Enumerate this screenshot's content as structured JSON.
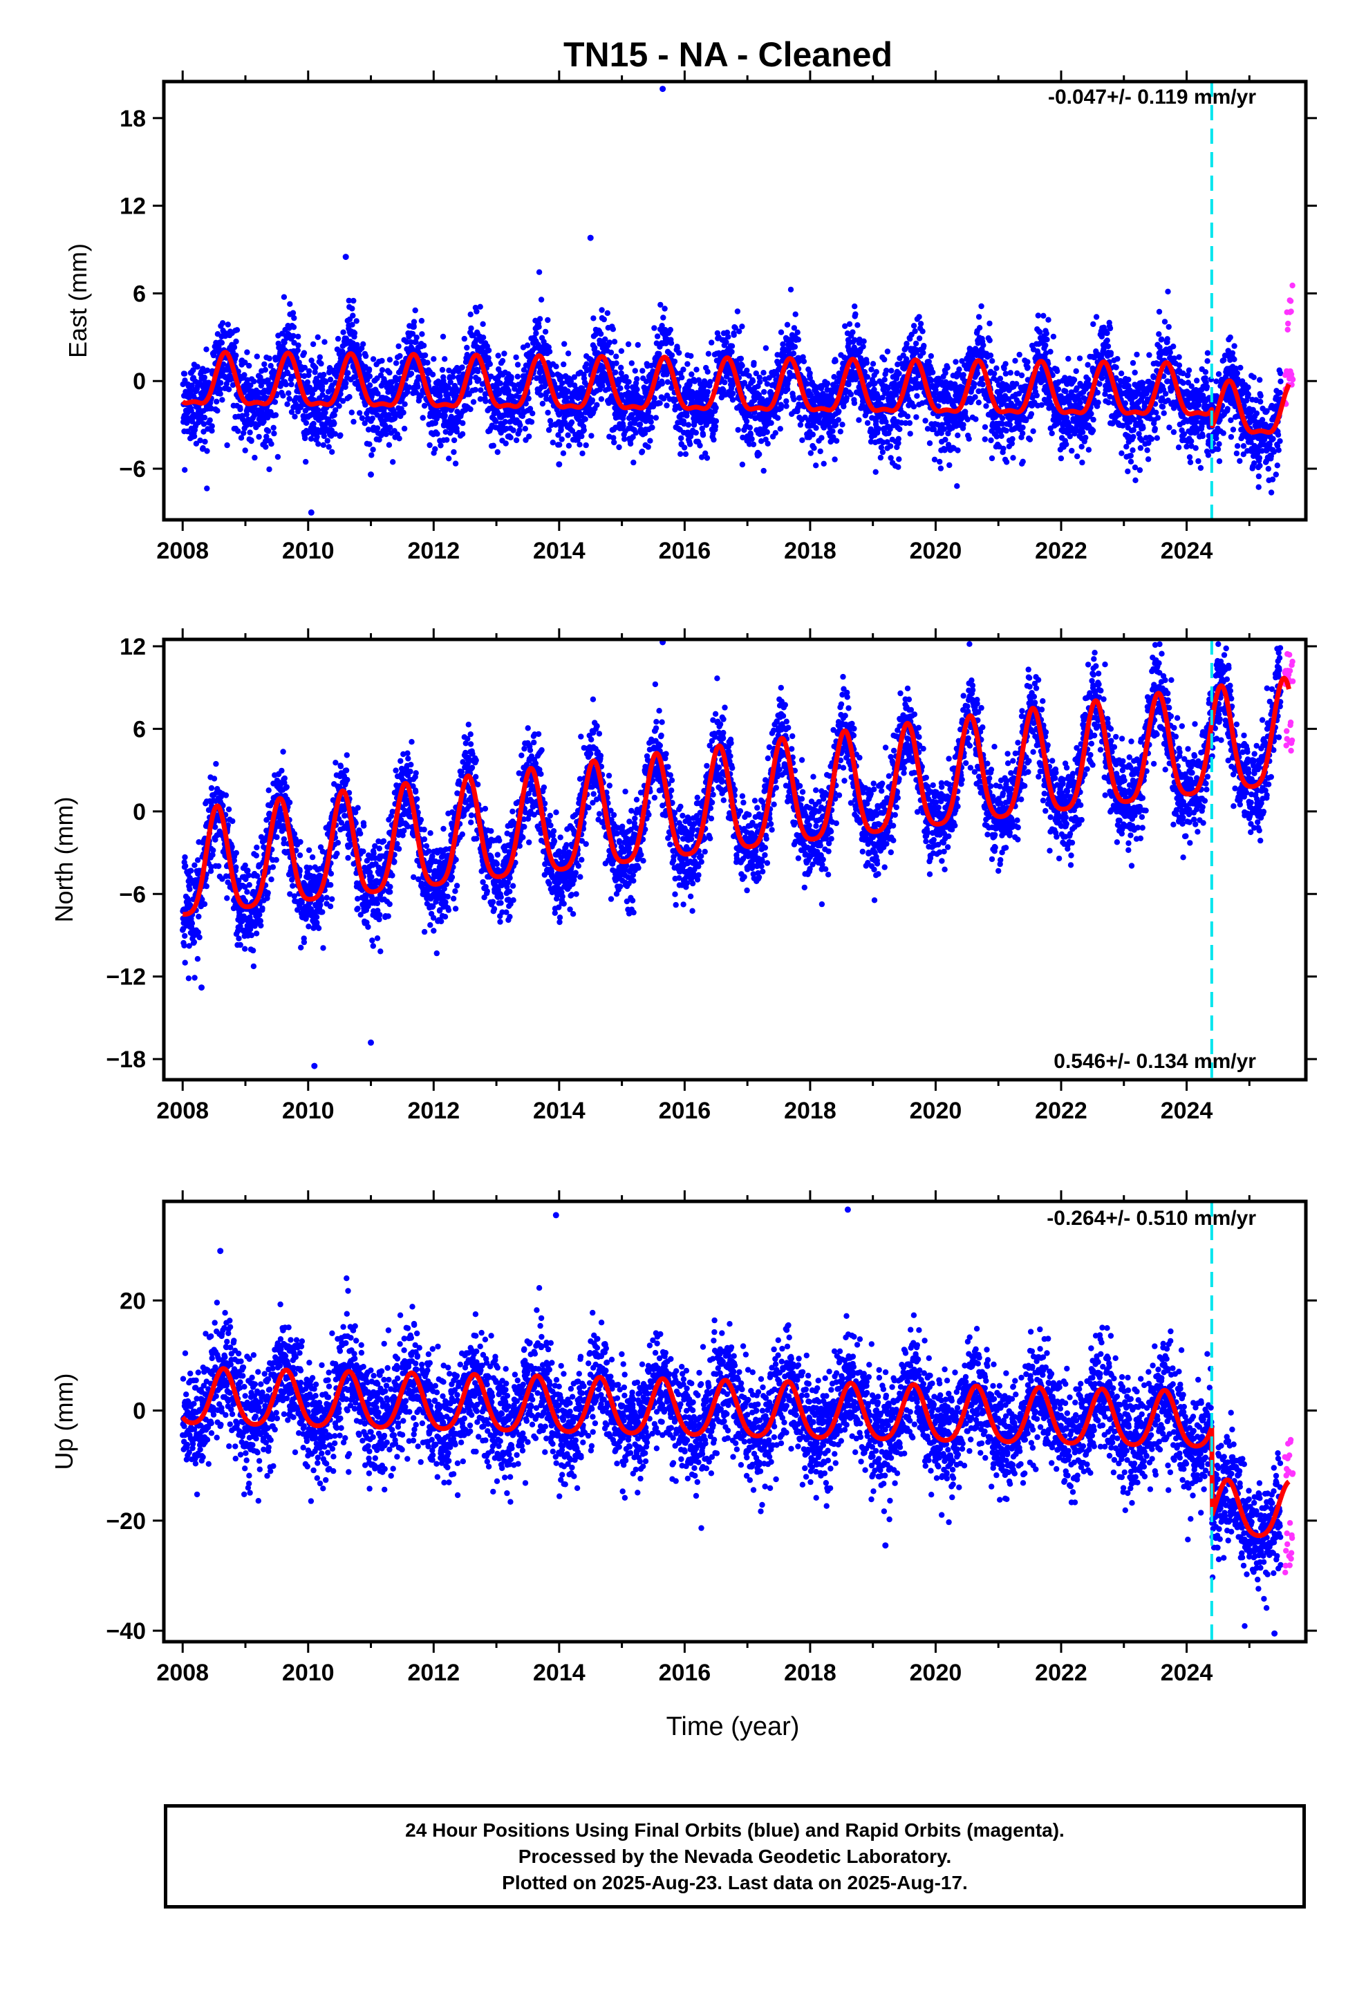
{
  "title": "TN15  - NA - Cleaned",
  "xlabel": "Time (year)",
  "colors": {
    "final": "#0000ff",
    "rapid": "#ff33ff",
    "model": "#ff0000",
    "event": "#00e5ee"
  },
  "footer": {
    "line1": "24 Hour Positions Using Final Orbits (blue) and Rapid Orbits (magenta).",
    "line2": "Processed by the Nevada Geodetic Laboratory.",
    "line3": "Plotted on 2025-Aug-23. Last data on 2025-Aug-17."
  },
  "chart_data": [
    {
      "type": "scatter",
      "component": "East",
      "ylabel": "East (mm)",
      "rate_label": "-0.047+/- 0.119 mm/yr",
      "xlim": [
        2007.7,
        2025.9
      ],
      "ylim": [
        -9.5,
        20.5
      ],
      "xticks": [
        2008,
        2010,
        2012,
        2014,
        2016,
        2018,
        2020,
        2022,
        2024
      ],
      "yticks": [
        -6,
        0,
        6,
        12,
        18
      ],
      "event_year": 2024.4,
      "model": {
        "x0": 2008.0,
        "base": -0.3,
        "trend": -0.047,
        "amp_annual": 1.7,
        "amp_semiannual": 0.6,
        "phase_peak": 0.68,
        "noise": 1.5,
        "step": -1.2
      },
      "final_orbit_x_range": [
        2008.0,
        2025.5
      ],
      "rapid_orbit_x_range": [
        2025.5,
        2025.63
      ],
      "outliers": [
        [
          2015.65,
          20.0
        ],
        [
          2010.05,
          -9.0
        ],
        [
          2011.0,
          -6.4
        ],
        [
          2014.5,
          9.8
        ],
        [
          2010.6,
          8.5
        ],
        [
          2014.0,
          -5.7
        ]
      ]
    },
    {
      "type": "scatter",
      "component": "North",
      "ylabel": "North (mm)",
      "rate_label": "0.546+/- 0.134 mm/yr",
      "xlim": [
        2007.7,
        2025.9
      ],
      "ylim": [
        -19.5,
        12.5
      ],
      "xticks": [
        2008,
        2010,
        2012,
        2014,
        2016,
        2018,
        2020,
        2022,
        2024
      ],
      "yticks": [
        -18,
        -12,
        -6,
        0,
        6,
        12
      ],
      "event_year": 2024.4,
      "model": {
        "x0": 2008.0,
        "base": -4.5,
        "trend": 0.546,
        "amp_annual": 3.8,
        "amp_semiannual": 0.8,
        "phase_peak": 0.55,
        "noise": 1.6,
        "step": 0.0
      },
      "final_orbit_x_range": [
        2008.0,
        2025.5
      ],
      "rapid_orbit_x_range": [
        2025.5,
        2025.63
      ],
      "outliers": [
        [
          2015.65,
          12.3
        ],
        [
          2010.1,
          -18.5
        ],
        [
          2011.0,
          -16.8
        ],
        [
          2008.3,
          -12.8
        ],
        [
          2014.6,
          6.2
        ]
      ]
    },
    {
      "type": "scatter",
      "component": "Up",
      "ylabel": "Up (mm)",
      "rate_label": "-0.264+/- 0.510 mm/yr",
      "xlim": [
        2007.7,
        2025.9
      ],
      "ylim": [
        -42,
        38
      ],
      "xticks": [
        2008,
        2010,
        2012,
        2014,
        2016,
        2018,
        2020,
        2022,
        2024
      ],
      "yticks": [
        -40,
        -20,
        0,
        20
      ],
      "event_year": 2024.4,
      "model": {
        "x0": 2008.0,
        "base": 2.0,
        "trend": -0.264,
        "amp_annual": 5.0,
        "amp_semiannual": 0.8,
        "phase_peak": 0.65,
        "noise": 5.0,
        "step": -16.0
      },
      "final_orbit_x_range": [
        2008.0,
        2025.5
      ],
      "rapid_orbit_x_range": [
        2025.5,
        2025.63
      ],
      "outliers": [
        [
          2013.95,
          35.5
        ],
        [
          2018.6,
          36.5
        ],
        [
          2008.6,
          29.0
        ],
        [
          2019.2,
          -24.5
        ],
        [
          2025.4,
          -40.5
        ]
      ]
    }
  ]
}
